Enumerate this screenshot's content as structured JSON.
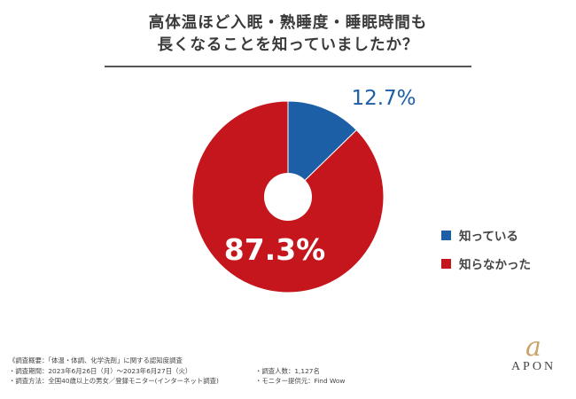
{
  "title_line1": "高体温ほど入眠・熟睡度・睡眠時間も",
  "title_line2": "長くなることを知っていましたか？",
  "chart_data": {
    "type": "pie",
    "title": "高体温ほど入眠・熟睡度・睡眠時間も長くなることを知っていましたか？",
    "slices": [
      {
        "label": "知っている",
        "value": 12.7,
        "display": "12.7%",
        "color": "#1d5fa7"
      },
      {
        "label": "知らなかった",
        "value": 87.3,
        "display": "87.3%",
        "color": "#c4161c"
      }
    ],
    "donut_hole": true
  },
  "footer": {
    "summary": "《調査概要：「体温・体調、化学洗剤」に関する認知度調査",
    "period": "・調査期間：2023年6月26日（月）～2023年6月27日（火）",
    "method": "・調査方法：全国40歳以上の男女／登録モニター(インターネット調査)",
    "respondents": "・調査人数：1,127名",
    "provider": "・モニター提供元：Find Wow"
  },
  "logo": {
    "mark": "a",
    "text": "APON",
    "color": "#c9a46a"
  }
}
